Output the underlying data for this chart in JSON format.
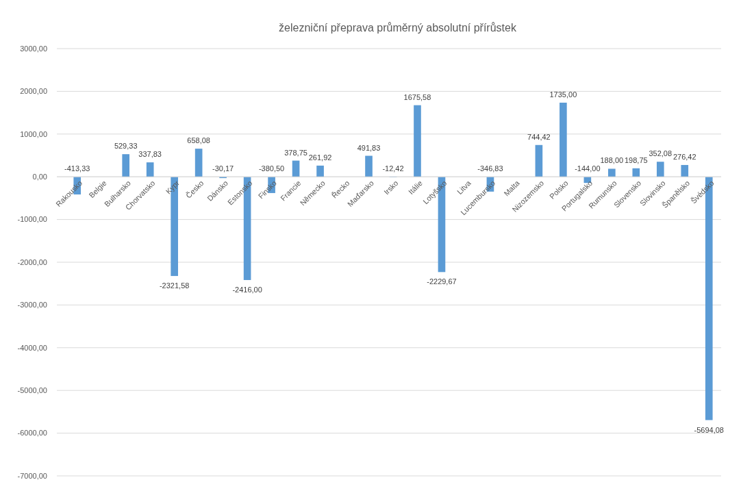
{
  "chart_data": {
    "type": "bar",
    "title": "železniční přeprava průměrný absolutní přírůstek",
    "categories": [
      "Rakousko",
      "Belgie",
      "Bulharsko",
      "Chorvatsko",
      "Kypr",
      "Česko",
      "Dánsko",
      "Estonsko",
      "Finsko",
      "Francie",
      "Německo",
      "Řecko",
      "Maďarsko",
      "Irsko",
      "Itálie",
      "Lotyšsko",
      "Litva",
      "Lucembursko",
      "Malta",
      "Nizozemsko",
      "Polsko",
      "Portugalsko",
      "Rumunsko",
      "Slovensko",
      "Slovinsko",
      "Španělsko",
      "Švédsko"
    ],
    "values": [
      -413.33,
      null,
      529.33,
      337.83,
      -2321.58,
      658.08,
      -30.17,
      -2416.0,
      -380.5,
      378.75,
      261.92,
      null,
      491.83,
      -12.42,
      1675.58,
      -2229.67,
      null,
      -346.83,
      null,
      744.42,
      1735.0,
      -144.0,
      188.0,
      198.75,
      352.08,
      276.42,
      -5694.08
    ],
    "value_labels": [
      "-413,33",
      null,
      "529,33",
      "337,83",
      "-2321,58",
      "658,08",
      "-30,17",
      "-2416,00",
      "-380,50",
      "378,75",
      "261,92",
      null,
      "491,83",
      "-12,42",
      "1675,58",
      "-2229,67",
      null,
      "-346,83",
      null,
      "744,42",
      "1735,00",
      "-144,00",
      "188,00",
      "198,75",
      "352,08",
      "276,42",
      "-5694,08"
    ],
    "color": "#5b9bd5",
    "ylim": [
      -7000,
      3000
    ],
    "yticks": [
      {
        "value": -7000,
        "label": "-7000,00"
      },
      {
        "value": -6000,
        "label": "-6000,00"
      },
      {
        "value": -5000,
        "label": "-5000,00"
      },
      {
        "value": -4000,
        "label": "-4000,00"
      },
      {
        "value": -3000,
        "label": "-3000,00"
      },
      {
        "value": -2000,
        "label": "-2000,00"
      },
      {
        "value": -1000,
        "label": "-1000,00"
      },
      {
        "value": 0,
        "label": "0,00"
      },
      {
        "value": 1000,
        "label": "1000,00"
      },
      {
        "value": 2000,
        "label": "2000,00"
      },
      {
        "value": 3000,
        "label": "3000,00"
      }
    ],
    "grid": "y"
  }
}
